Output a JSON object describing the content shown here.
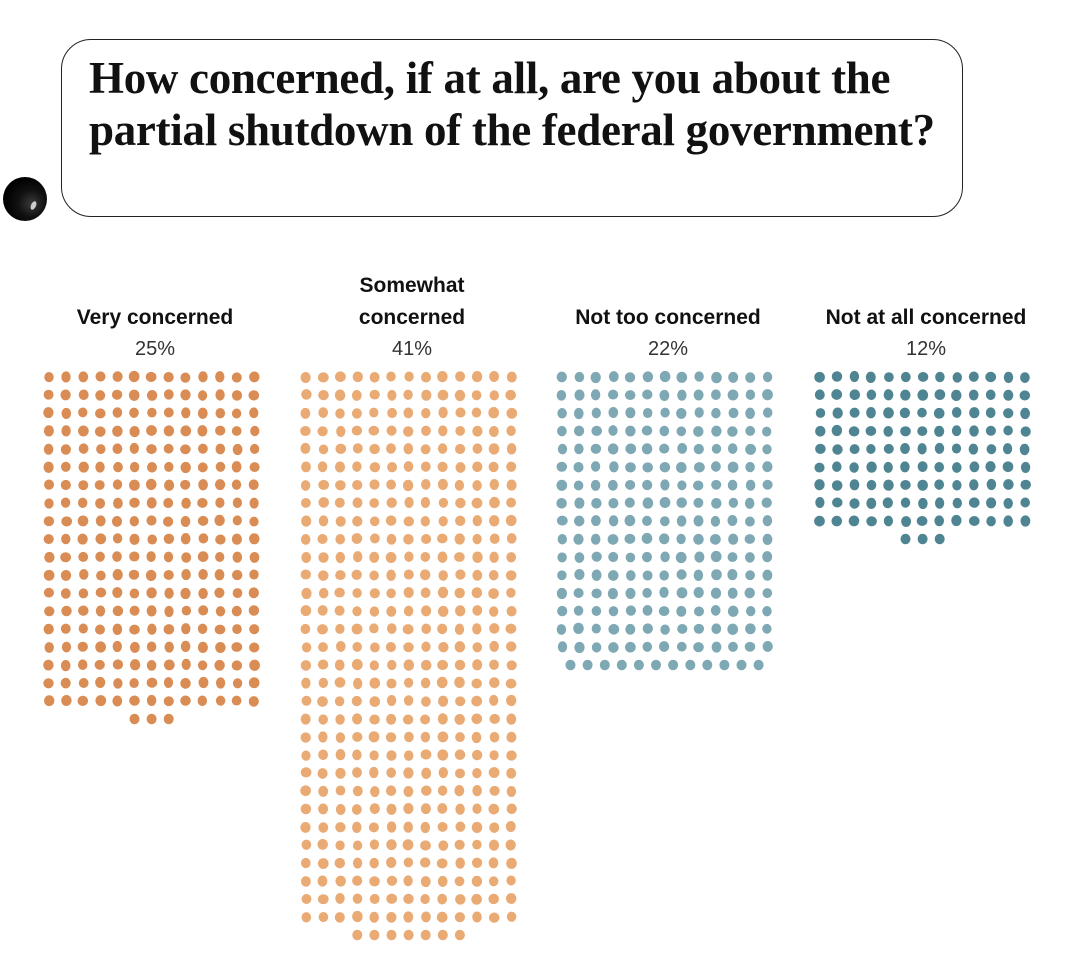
{
  "question": "How concerned, if at all, are you about the partial shutdown of the federal government?",
  "chart_data": {
    "type": "waffle",
    "title": "How concerned, if at all, are you about the partial shutdown of the federal government?",
    "unit": "%",
    "categories": [
      "Very concerned",
      "Somewhat concerned",
      "Not too concerned",
      "Not at all concerned"
    ],
    "values": [
      25,
      41,
      22,
      12
    ],
    "series": [
      {
        "name": "Very concerned",
        "label": "Very concerned",
        "pct_label": "25%",
        "value": 25,
        "dots": 250,
        "color": "#d98c53"
      },
      {
        "name": "Somewhat concerned",
        "label_lines": [
          "Somewhat",
          "concerned"
        ],
        "pct_label": "41%",
        "value": 41,
        "dots": 410,
        "color": "#e9aa74"
      },
      {
        "name": "Not too concerned",
        "label": "Not too concerned",
        "pct_label": "22%",
        "value": 22,
        "dots": 220,
        "color": "#7ea8b3"
      },
      {
        "name": "Not at all concerned",
        "label": "Not at all concerned",
        "pct_label": "12%",
        "value": 12,
        "dots": 120,
        "color": "#4f8592"
      }
    ]
  }
}
